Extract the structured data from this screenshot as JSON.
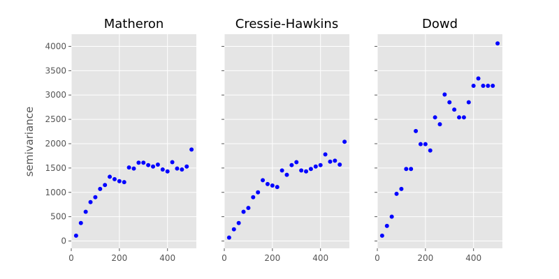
{
  "chart_data": {
    "type": "scatter",
    "ylabel": "semivariance",
    "xlim": [
      0,
      520
    ],
    "ylim": [
      -150,
      4250
    ],
    "x_ticks": [
      0,
      200,
      400
    ],
    "y_ticks": [
      0,
      500,
      1000,
      1500,
      2000,
      2500,
      3000,
      3500,
      4000
    ],
    "grid": true,
    "marker_color": "#0000ff",
    "background_color": "#e5e5e5",
    "panels": [
      {
        "title": "Matheron",
        "x": [
          20,
          40,
          60,
          80,
          100,
          120,
          140,
          160,
          180,
          200,
          220,
          240,
          260,
          280,
          300,
          320,
          340,
          360,
          380,
          400,
          420,
          440,
          460,
          480,
          500
        ],
        "y": [
          110,
          370,
          600,
          800,
          900,
          1070,
          1150,
          1320,
          1270,
          1230,
          1210,
          1510,
          1490,
          1610,
          1610,
          1560,
          1530,
          1570,
          1470,
          1430,
          1620,
          1490,
          1470,
          1530,
          1880
        ]
      },
      {
        "title": "Cressie-Hawkins",
        "x": [
          20,
          40,
          60,
          80,
          100,
          120,
          140,
          160,
          180,
          200,
          220,
          240,
          260,
          280,
          300,
          320,
          340,
          360,
          380,
          400,
          420,
          440,
          460,
          480,
          500
        ],
        "y": [
          70,
          240,
          370,
          600,
          680,
          900,
          1000,
          1250,
          1170,
          1140,
          1110,
          1450,
          1360,
          1560,
          1620,
          1450,
          1430,
          1480,
          1530,
          1560,
          1780,
          1630,
          1650,
          1570,
          2040
        ]
      },
      {
        "title": "Dowd",
        "x": [
          20,
          40,
          60,
          80,
          100,
          120,
          140,
          160,
          180,
          200,
          220,
          240,
          260,
          280,
          300,
          320,
          340,
          360,
          380,
          400,
          420,
          440,
          460,
          480,
          500
        ],
        "y": [
          110,
          310,
          500,
          970,
          1070,
          1480,
          1480,
          2260,
          1990,
          1990,
          1860,
          2540,
          2400,
          3010,
          2850,
          2700,
          2540,
          2540,
          2850,
          3190,
          3340,
          3190,
          3190,
          3190,
          4060
        ]
      }
    ]
  }
}
